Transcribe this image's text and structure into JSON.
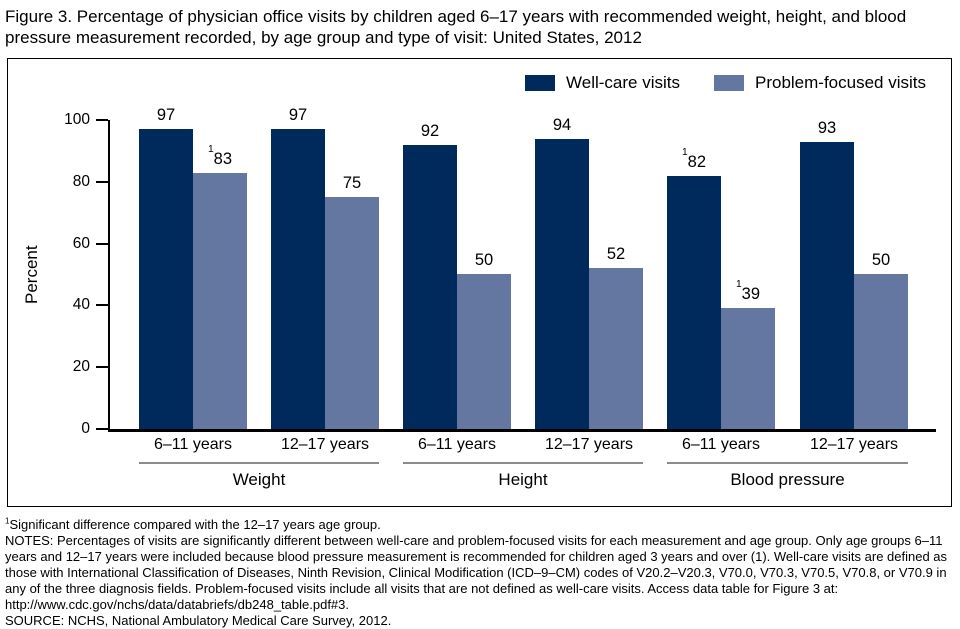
{
  "title": "Figure 3. Percentage of physician office visits by children aged 6–17 years with recommended weight, height, and blood pressure measurement recorded, by age group and type of visit: United States, 2012",
  "legend": {
    "items": [
      {
        "label": "Well-care visits",
        "color": "#012a5c"
      },
      {
        "label": "Problem-focused visits",
        "color": "#6477a0"
      }
    ]
  },
  "y_axis": {
    "label": "Percent",
    "ticks": [
      0,
      20,
      40,
      60,
      80,
      100
    ],
    "max": 100
  },
  "chart_data": {
    "type": "bar",
    "title": "Figure 3. Percentage of physician office visits by children aged 6–17 years with recommended weight, height, and blood pressure measurement recorded, by age group and type of visit: United States, 2012",
    "ylabel": "Percent",
    "ylim": [
      0,
      100
    ],
    "grid": false,
    "legend_position": "top-right-inside",
    "series_names": [
      "Well-care visits",
      "Problem-focused visits"
    ],
    "colors": {
      "well_care": "#012a5c",
      "problem_focused": "#6477a0"
    },
    "significance_marker": "1",
    "groups": [
      {
        "measurement": "Weight",
        "pairs": [
          {
            "age": "6–11 years",
            "well_care": 97,
            "well_care_flag": "",
            "problem_focused": 83,
            "problem_focused_flag": "1"
          },
          {
            "age": "12–17 years",
            "well_care": 97,
            "well_care_flag": "",
            "problem_focused": 75,
            "problem_focused_flag": ""
          }
        ]
      },
      {
        "measurement": "Height",
        "pairs": [
          {
            "age": "6–11 years",
            "well_care": 92,
            "well_care_flag": "",
            "problem_focused": 50,
            "problem_focused_flag": ""
          },
          {
            "age": "12–17 years",
            "well_care": 94,
            "well_care_flag": "",
            "problem_focused": 52,
            "problem_focused_flag": ""
          }
        ]
      },
      {
        "measurement": "Blood pressure",
        "pairs": [
          {
            "age": "6–11 years",
            "well_care": 82,
            "well_care_flag": "1",
            "problem_focused": 39,
            "problem_focused_flag": "1"
          },
          {
            "age": "12–17 years",
            "well_care": 93,
            "well_care_flag": "",
            "problem_focused": 50,
            "problem_focused_flag": ""
          }
        ]
      }
    ]
  },
  "footnotes": {
    "significance_marker": "1",
    "significance": "Significant difference compared with the 12–17 years age group.",
    "notes": "NOTES: Percentages of visits are significantly different between well-care and problem-focused visits for each measurement and age group. Only age groups 6–11 years and 12–17 years were included because blood pressure measurement is recommended for children aged 3 years and over (1). Well-care visits are defined as those with International Classification of Diseases, Ninth Revision, Clinical Modification (ICD–9–CM) codes of V20.2–V20.3, V70.0, V70.3, V70.5, V70.8, or V70.9 in any of the three diagnosis fields. Problem-focused visits include all visits that are not defined as well-care visits. Access data table for Figure 3 at: http://www.cdc.gov/nchs/data/databriefs/db248_table.pdf#3.",
    "source": "SOURCE: NCHS, National Ambulatory Medical Care Survey, 2012."
  }
}
